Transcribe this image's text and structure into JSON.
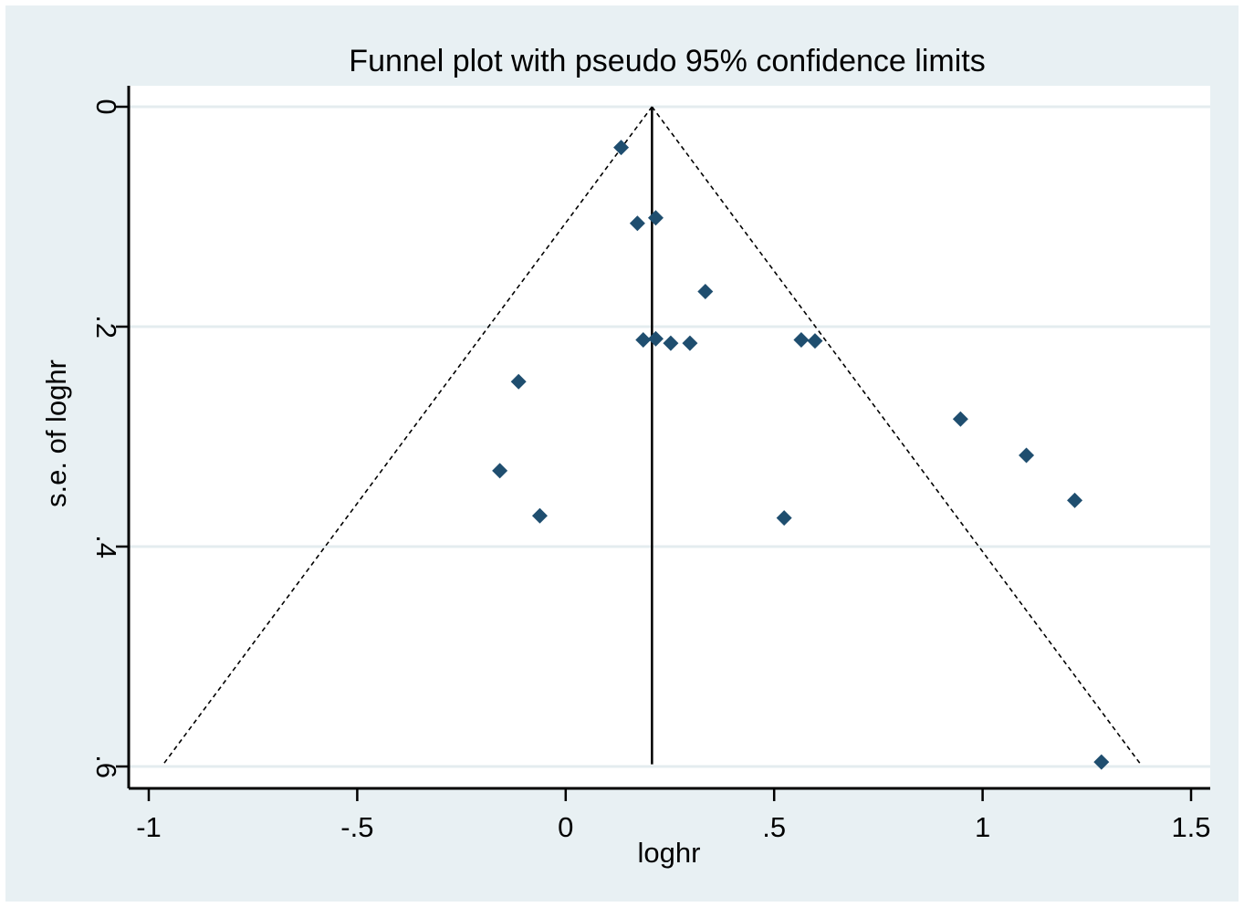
{
  "chart_data": {
    "type": "scatter",
    "title": "Funnel plot with pseudo 95% confidence limits",
    "xlabel": "loghr",
    "ylabel": "s.e. of loghr",
    "xlim": [
      -1.05,
      1.55
    ],
    "ylim": [
      0,
      0.62
    ],
    "y_reversed": true,
    "x_ticks": [
      -1,
      -0.5,
      0,
      0.5,
      1,
      1.5
    ],
    "x_tick_labels": [
      "-1",
      "-.5",
      "0",
      ".5",
      "1",
      "1.5"
    ],
    "y_ticks": [
      0,
      0.2,
      0.4,
      0.6
    ],
    "y_tick_labels": [
      "0",
      ".2",
      ".4",
      ".6"
    ],
    "grid": "horizontal",
    "pooled_estimate": 0.207,
    "funnel_max_se": 0.598,
    "points": [
      {
        "x": 0.133,
        "y": 0.037
      },
      {
        "x": 0.172,
        "y": 0.106
      },
      {
        "x": 0.216,
        "y": 0.101
      },
      {
        "x": 0.335,
        "y": 0.168
      },
      {
        "x": 0.186,
        "y": 0.212
      },
      {
        "x": 0.216,
        "y": 0.211
      },
      {
        "x": 0.252,
        "y": 0.215
      },
      {
        "x": 0.298,
        "y": 0.215
      },
      {
        "x": 0.565,
        "y": 0.212
      },
      {
        "x": 0.598,
        "y": 0.213
      },
      {
        "x": -0.113,
        "y": 0.25
      },
      {
        "x": 0.947,
        "y": 0.284
      },
      {
        "x": 1.105,
        "y": 0.317
      },
      {
        "x": -0.158,
        "y": 0.331
      },
      {
        "x": 1.221,
        "y": 0.358
      },
      {
        "x": -0.062,
        "y": 0.372
      },
      {
        "x": 0.524,
        "y": 0.374
      },
      {
        "x": 1.285,
        "y": 0.596
      }
    ],
    "colors": {
      "background": "#e8f0f3",
      "plot_area": "#ffffff",
      "grid": "#e4ecef",
      "marker": "#1f4e6f",
      "axis": "#000000"
    }
  }
}
